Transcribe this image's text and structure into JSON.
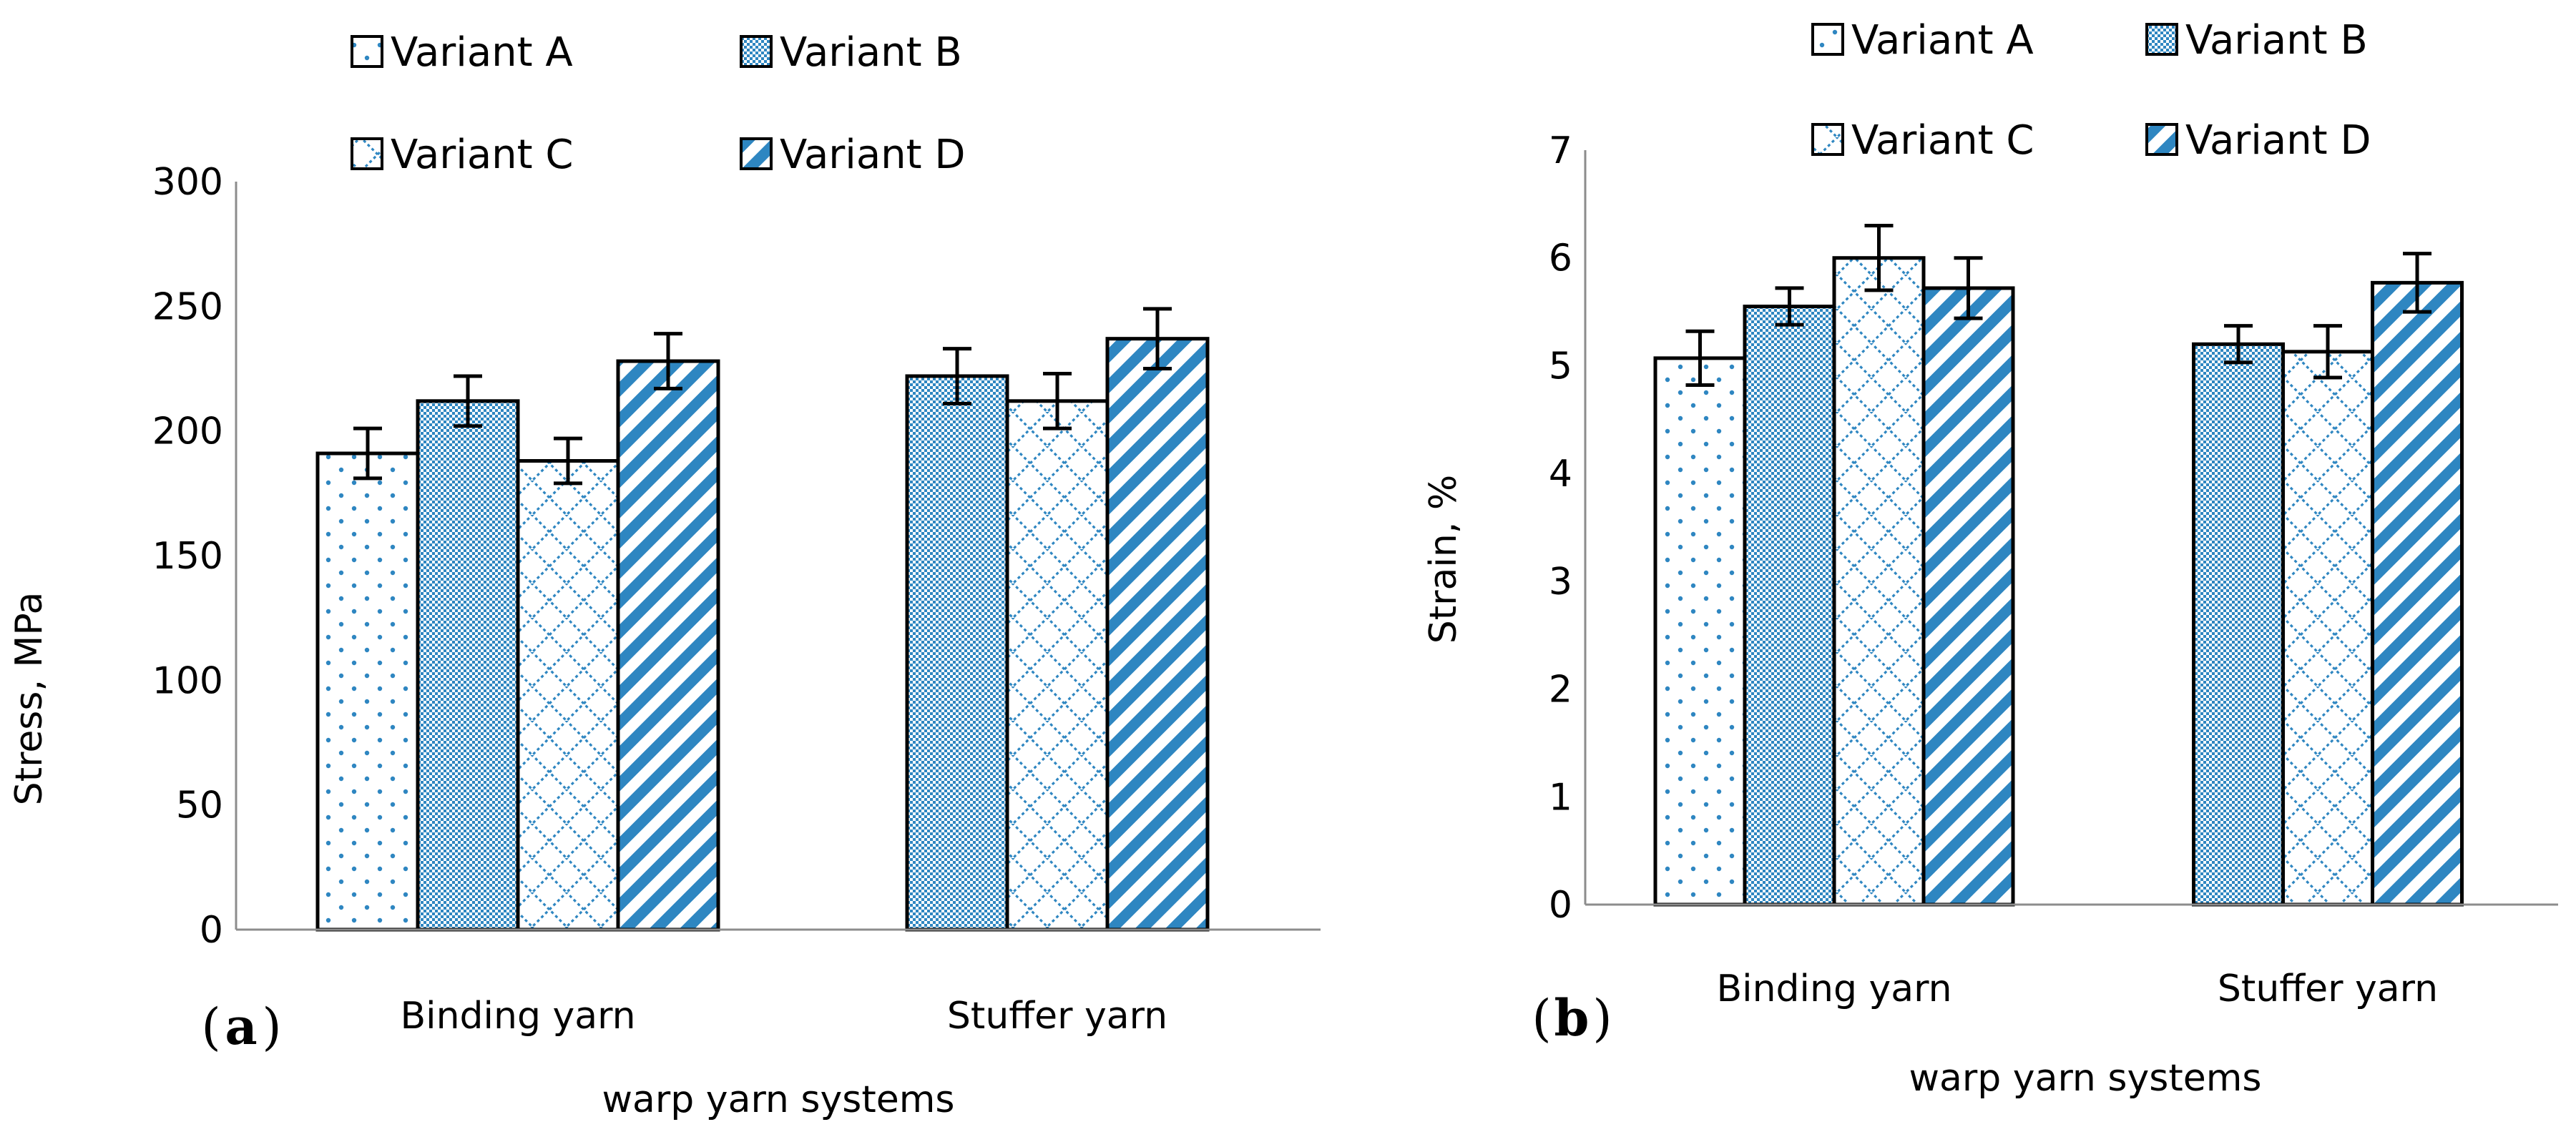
{
  "colors": {
    "fill_blue": "#2e86c1",
    "axis_gray": "#8c8c8c",
    "bar_edge": "#000000",
    "background": "#ffffff"
  },
  "legend": {
    "labels": [
      "Variant A",
      "Variant B",
      "Variant C",
      "Variant D"
    ],
    "patterns": [
      "dots",
      "checker",
      "diamond-lattice",
      "diagonal-stripes"
    ]
  },
  "chart_data": [
    {
      "type": "bar",
      "panel_label": "a",
      "categories": [
        "Binding yarn",
        "Stuffer yarn"
      ],
      "series": [
        {
          "name": "Variant A",
          "values": [
            191,
            null
          ],
          "errors": [
            10,
            null
          ]
        },
        {
          "name": "Variant B",
          "values": [
            212,
            222
          ],
          "errors": [
            10,
            11
          ]
        },
        {
          "name": "Variant C",
          "values": [
            188,
            212
          ],
          "errors": [
            9,
            11
          ]
        },
        {
          "name": "Variant D",
          "values": [
            228,
            237
          ],
          "errors": [
            11,
            12
          ]
        }
      ],
      "xlabel": "warp yarn systems",
      "ylabel": "Stress, MPa",
      "ylim": [
        0,
        300
      ],
      "yticks": [
        0,
        50,
        100,
        150,
        200,
        250,
        300
      ],
      "ytick_labels": [
        "0",
        "50",
        "100",
        "150",
        "200",
        "250",
        "300"
      ],
      "grid": false
    },
    {
      "type": "bar",
      "panel_label": "b",
      "categories": [
        "Binding yarn",
        "Stuffer yarn"
      ],
      "series": [
        {
          "name": "Variant A",
          "values": [
            5.07,
            null
          ],
          "errors": [
            0.25,
            null
          ]
        },
        {
          "name": "Variant B",
          "values": [
            5.55,
            5.2
          ],
          "errors": [
            0.17,
            0.17
          ]
        },
        {
          "name": "Variant C",
          "values": [
            6.0,
            5.13
          ],
          "errors": [
            0.3,
            0.24
          ]
        },
        {
          "name": "Variant D",
          "values": [
            5.72,
            5.77
          ],
          "errors": [
            0.28,
            0.27
          ]
        }
      ],
      "xlabel": "warp yarn systems",
      "ylabel": "Strain, %",
      "ylim": [
        0,
        7
      ],
      "yticks": [
        0,
        1,
        2,
        3,
        4,
        5,
        6,
        7
      ],
      "ytick_labels": [
        "0",
        "1",
        "2",
        "3",
        "4",
        "5",
        "6",
        "7"
      ],
      "grid": false
    }
  ]
}
